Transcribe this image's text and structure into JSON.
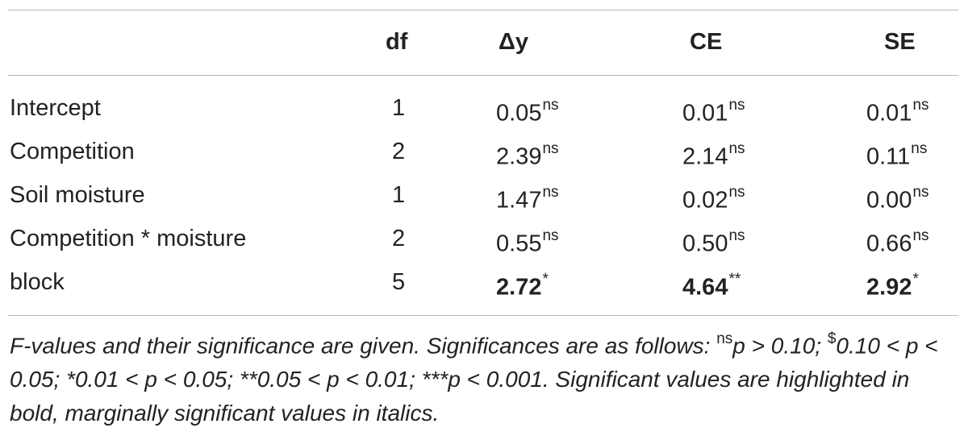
{
  "table": {
    "columns": [
      "",
      "df",
      "Δy",
      "CE",
      "SE"
    ],
    "rows": [
      {
        "name": "Intercept",
        "df": "1",
        "dy": {
          "v": "0.05",
          "s": "ns",
          "bold": false
        },
        "ce": {
          "v": "0.01",
          "s": "ns",
          "bold": false
        },
        "se": {
          "v": "0.01",
          "s": "ns",
          "bold": false
        }
      },
      {
        "name": "Competition",
        "df": "2",
        "dy": {
          "v": "2.39",
          "s": "ns",
          "bold": false
        },
        "ce": {
          "v": "2.14",
          "s": "ns",
          "bold": false
        },
        "se": {
          "v": "0.11",
          "s": "ns",
          "bold": false
        }
      },
      {
        "name": "Soil moisture",
        "df": "1",
        "dy": {
          "v": "1.47",
          "s": "ns",
          "bold": false
        },
        "ce": {
          "v": "0.02",
          "s": "ns",
          "bold": false
        },
        "se": {
          "v": "0.00",
          "s": "ns",
          "bold": false
        }
      },
      {
        "name": "Competition * moisture",
        "df": "2",
        "dy": {
          "v": "0.55",
          "s": "ns",
          "bold": false
        },
        "ce": {
          "v": "0.50",
          "s": "ns",
          "bold": false
        },
        "se": {
          "v": "0.66",
          "s": "ns",
          "bold": false
        }
      },
      {
        "name": "block",
        "df": "5",
        "dy": {
          "v": "2.72",
          "s": "*",
          "bold": true
        },
        "ce": {
          "v": "4.64",
          "s": "**",
          "bold": true
        },
        "se": {
          "v": "2.92",
          "s": "*",
          "bold": true
        }
      }
    ]
  },
  "note": {
    "part1": "F-values and their significance are given. Significances are as follows: ",
    "sup_ns": "ns",
    "part2": "p > 0.10; ",
    "sup_dollar": "$",
    "part3": "0.10 < p < 0.05; *0.01 < p < 0.05; **0.05 < p < 0.01; ***p < 0.001. Significant values are highlighted in bold, marginally significant values in italics."
  }
}
